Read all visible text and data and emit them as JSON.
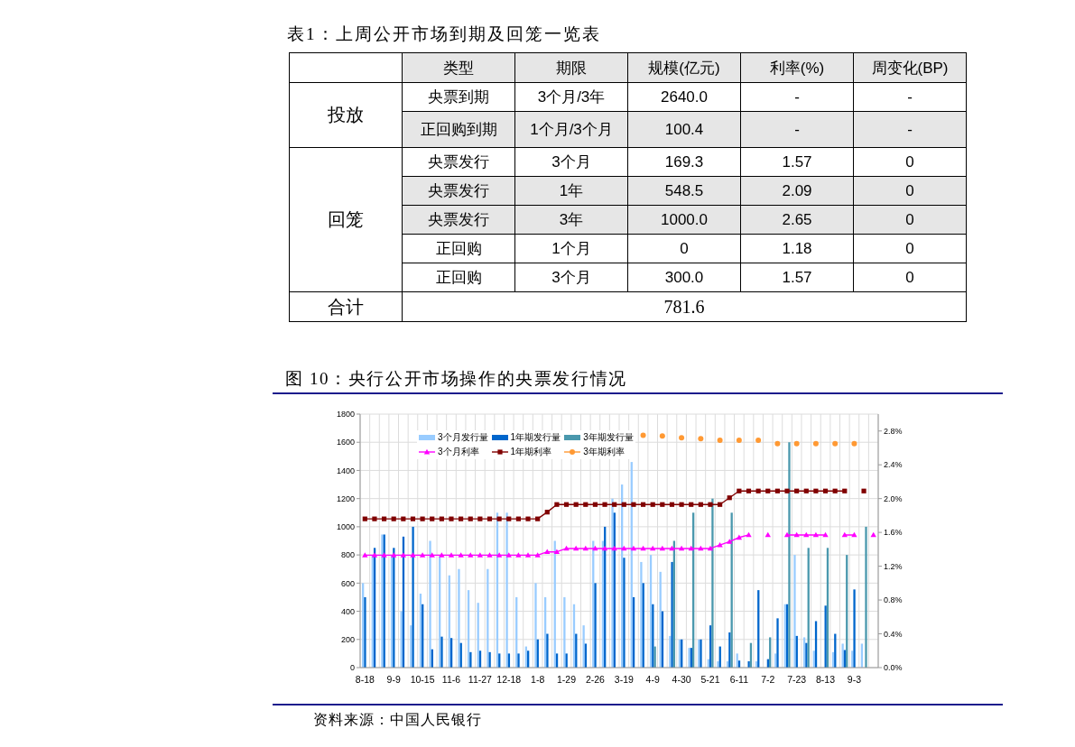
{
  "chart_data": [
    {
      "type": "other",
      "title": "表1：上周公开市场到期及回笼一览表",
      "categories": [
        "类型",
        "期限",
        "规模(亿元)",
        "利率(%)",
        "周变化(BP)"
      ],
      "y_categories": [
        "投放",
        null,
        "回笼",
        null,
        null,
        null,
        null,
        "合计"
      ],
      "cell_labels": [
        [
          "央票到期",
          "3个月/3年",
          "2640.0",
          "-",
          "-"
        ],
        [
          "正回购到期",
          "1个月/3个月",
          "100.4",
          "-",
          "-"
        ],
        [
          "央票发行",
          "3个月",
          "169.3",
          "1.57",
          "0"
        ],
        [
          "央票发行",
          "1年",
          "548.5",
          "2.09",
          "0"
        ],
        [
          "央票发行",
          "3年",
          "1000.0",
          "2.65",
          "0"
        ],
        [
          "正回购",
          "1个月",
          "0",
          "1.18",
          "0"
        ],
        [
          "正回购",
          "3个月",
          "300.0",
          "1.57",
          "0"
        ],
        [
          "781.6",
          null,
          null,
          null,
          null
        ]
      ]
    },
    {
      "type": "bar",
      "title": "图 10：央行公开市场操作的央票发行情况",
      "annotations": [
        "资料来源：中国人民银行"
      ],
      "categories": [
        "8-18",
        null,
        null,
        "9-9",
        null,
        null,
        "10-15",
        null,
        null,
        "11-6",
        null,
        null,
        "11-27",
        null,
        null,
        "12-18",
        null,
        null,
        "1-8",
        null,
        null,
        "1-29",
        null,
        null,
        "2-26",
        null,
        null,
        "3-19",
        null,
        null,
        "4-9",
        null,
        null,
        "4-30",
        null,
        null,
        "5-21",
        null,
        null,
        "6-11",
        null,
        null,
        "7-2",
        null,
        null,
        "7-23",
        null,
        null,
        "8-13",
        null,
        null,
        "9-3",
        null,
        null
      ],
      "series": [
        {
          "name": "3个月发行量",
          "type": "bar",
          "color": "#99ccff",
          "values": [
            600,
            800,
            945,
            800,
            400,
            300,
            525,
            900,
            790,
            655,
            700,
            550,
            460,
            700,
            1100,
            1100,
            500,
            150,
            600,
            500,
            900,
            500,
            450,
            300,
            900,
            900,
            1200,
            1300,
            1460,
            750,
            800,
            680,
            225,
            200,
            140,
            200,
            60,
            45,
            45,
            100,
            null,
            45,
            null,
            100,
            450,
            800,
            215,
            120,
            null,
            110,
            170,
            120,
            170,
            null
          ]
        },
        {
          "name": "1年期发行量",
          "type": "bar",
          "color": "#0066cc",
          "values": [
            500,
            850,
            945,
            850,
            930,
            1000,
            450,
            130,
            220,
            210,
            175,
            110,
            120,
            110,
            100,
            100,
            100,
            120,
            200,
            240,
            100,
            100,
            240,
            170,
            600,
            1000,
            1100,
            780,
            500,
            600,
            450,
            400,
            750,
            200,
            140,
            200,
            300,
            150,
            250,
            50,
            45,
            550,
            60,
            350,
            450,
            225,
            175,
            330,
            440,
            240,
            125,
            555,
            null,
            null
          ]
        },
        {
          "name": "3年期发行量",
          "type": "bar",
          "color": "#4a98ad",
          "values": [
            null,
            null,
            null,
            null,
            null,
            null,
            null,
            null,
            null,
            null,
            null,
            null,
            null,
            null,
            null,
            null,
            null,
            null,
            null,
            null,
            null,
            null,
            null,
            null,
            null,
            null,
            null,
            null,
            null,
            null,
            150,
            null,
            900,
            null,
            1100,
            null,
            1200,
            null,
            1100,
            null,
            175,
            null,
            215,
            null,
            1600,
            null,
            850,
            null,
            850,
            null,
            800,
            null,
            1000,
            null
          ]
        },
        {
          "name": "3个月利率",
          "type": "line",
          "axis": "y2",
          "marker": "triangle",
          "color": "#ff00ff",
          "values": [
            1.33,
            1.33,
            1.33,
            1.33,
            1.33,
            1.33,
            1.33,
            1.33,
            1.33,
            1.33,
            1.33,
            1.33,
            1.33,
            1.33,
            1.33,
            1.33,
            1.33,
            1.33,
            1.33,
            1.37,
            1.37,
            1.41,
            1.41,
            1.41,
            1.41,
            1.41,
            1.41,
            1.41,
            1.41,
            1.41,
            1.41,
            1.41,
            1.41,
            1.41,
            1.41,
            1.41,
            1.41,
            1.45,
            1.49,
            1.54,
            1.57,
            null,
            1.57,
            null,
            1.57,
            1.57,
            1.57,
            1.57,
            1.57,
            null,
            1.57,
            1.57,
            null,
            1.57
          ]
        },
        {
          "name": "1年期利率",
          "type": "line",
          "axis": "y2",
          "marker": "square",
          "color": "#800000",
          "values": [
            1.76,
            1.76,
            1.76,
            1.76,
            1.76,
            1.76,
            1.76,
            1.76,
            1.76,
            1.76,
            1.76,
            1.76,
            1.76,
            1.76,
            1.76,
            1.76,
            1.76,
            1.76,
            1.76,
            1.84,
            1.93,
            1.93,
            1.93,
            1.93,
            1.93,
            1.93,
            1.93,
            1.93,
            1.93,
            1.93,
            1.93,
            1.93,
            1.93,
            1.93,
            1.93,
            1.93,
            1.93,
            1.93,
            2.01,
            2.09,
            2.09,
            2.09,
            2.09,
            2.09,
            2.09,
            2.09,
            2.09,
            2.09,
            2.09,
            2.09,
            2.09,
            null,
            2.09,
            null
          ]
        },
        {
          "name": "3年期利率",
          "type": "scatter",
          "axis": "y2",
          "marker": "circle",
          "color": "#ff9933",
          "values": [
            null,
            null,
            null,
            null,
            null,
            null,
            null,
            null,
            null,
            null,
            null,
            null,
            null,
            null,
            null,
            null,
            null,
            null,
            null,
            null,
            null,
            null,
            null,
            null,
            null,
            null,
            null,
            null,
            null,
            2.75,
            null,
            2.74,
            null,
            2.72,
            null,
            2.71,
            null,
            2.69,
            null,
            2.69,
            null,
            2.69,
            null,
            2.65,
            null,
            2.65,
            null,
            2.65,
            null,
            2.65,
            null,
            2.65,
            null,
            null
          ]
        }
      ],
      "ylim": [
        0,
        1800
      ],
      "yticks": [
        0,
        200,
        400,
        600,
        800,
        1000,
        1200,
        1400,
        1600,
        1800
      ],
      "y2lim": [
        0,
        3.0
      ],
      "y2ticks": [
        {
          "value": 0,
          "label": "0.0%"
        },
        {
          "value": 0.4,
          "label": "0.4%"
        },
        {
          "value": 0.8,
          "label": "0.8%"
        },
        {
          "value": 1.2,
          "label": "1.2%"
        },
        {
          "value": 1.6,
          "label": "1.6%"
        },
        {
          "value": 2.0,
          "label": "2.0%"
        },
        {
          "value": 2.4,
          "label": "2.4%"
        },
        {
          "value": 2.8,
          "label": "2.8%"
        }
      ],
      "grid": true,
      "legend": "top"
    }
  ]
}
